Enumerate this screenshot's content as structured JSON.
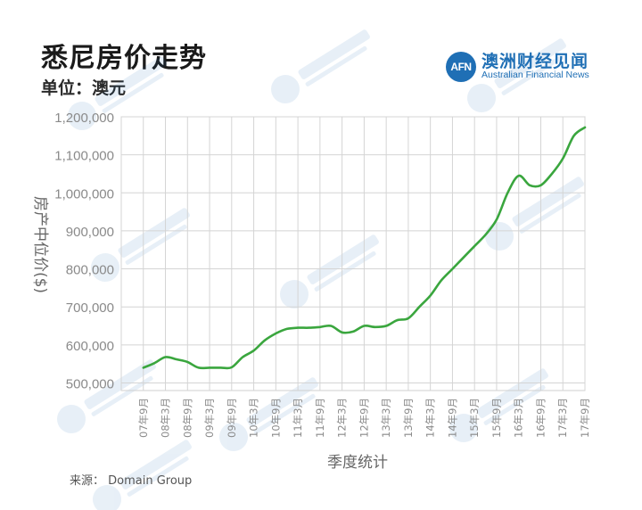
{
  "header": {
    "title": "悉尼房价走势",
    "unit": "单位：澳元"
  },
  "logo": {
    "mark": "AFN",
    "name_cn": "澳洲财经见闻",
    "name_en": "Australian Financial News",
    "color": "#1f6fb5"
  },
  "source": "来源：  Domain Group",
  "chart_data": {
    "type": "line",
    "title": "悉尼房价走势",
    "subtitle": "单位：澳元",
    "xlabel": "季度统计",
    "ylabel": "房产中位价($)",
    "ylim": [
      500000,
      1200000
    ],
    "yticks": [
      500000,
      600000,
      700000,
      800000,
      900000,
      1000000,
      1100000,
      1200000
    ],
    "ytick_labels": [
      "500,000",
      "600,000",
      "700,000",
      "800,000",
      "900,000",
      "1,000,000",
      "1,100,000",
      "1,200,000"
    ],
    "categories": [
      "07年9月",
      "08年3月",
      "08年9月",
      "09年3月",
      "09年9月",
      "10年3月",
      "10年9月",
      "11年3月",
      "11年9月",
      "12年3月",
      "12年9月",
      "13年3月",
      "13年9月",
      "14年3月",
      "14年9月",
      "15年3月",
      "15年9月",
      "16年3月",
      "16年9月",
      "17年3月",
      "17年9月"
    ],
    "grid": true,
    "line_color": "#3aa63e",
    "series": [
      {
        "name": "",
        "x": [
          0,
          0.5,
          1,
          1.5,
          2,
          2.5,
          3,
          3.5,
          4,
          4.5,
          5,
          5.5,
          6,
          6.5,
          7,
          7.5,
          8,
          8.5,
          9,
          9.5,
          10,
          10.5,
          11,
          11.5,
          12,
          12.5,
          13,
          13.5,
          14,
          14.5,
          15,
          15.5,
          16,
          16.5,
          17,
          17.5,
          18,
          18.5,
          19,
          19.5,
          20
        ],
        "values": [
          540000,
          552000,
          568000,
          562000,
          555000,
          540000,
          540000,
          540000,
          541000,
          568000,
          585000,
          612000,
          630000,
          642000,
          645000,
          645000,
          647000,
          650000,
          633000,
          635000,
          650000,
          647000,
          650000,
          665000,
          670000,
          700000,
          730000,
          770000,
          800000,
          830000,
          860000,
          890000,
          930000,
          1000000,
          1045000,
          1020000,
          1020000,
          1050000,
          1090000,
          1150000,
          1172000
        ]
      }
    ]
  }
}
